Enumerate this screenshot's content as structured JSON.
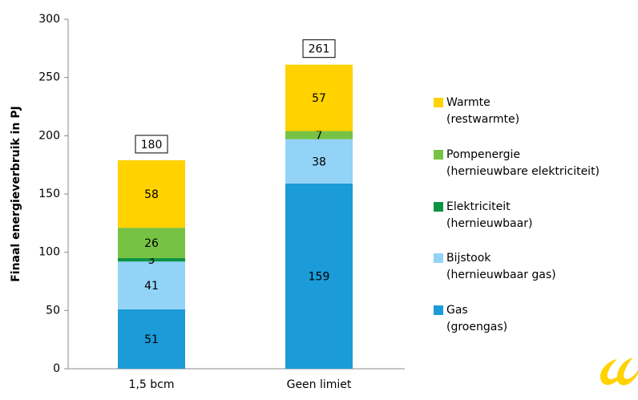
{
  "chart_data": {
    "type": "stacked_bar",
    "y_label": "Finaal energieverbruik in PJ",
    "categories": [
      "1,5 bcm",
      "Geen limiet"
    ],
    "series": [
      {
        "name": "Gas",
        "description": "(groengas)",
        "color": "#1b9bd7",
        "values": [
          51,
          159
        ]
      },
      {
        "name": "Bijstook",
        "description": "(hernieuwbaar gas)",
        "color": "#93d3f8",
        "values": [
          41,
          38
        ]
      },
      {
        "name": "Elektriciteit",
        "description": "(hernieuwbaar)",
        "color": "#0c9444",
        "values": [
          3,
          null
        ]
      },
      {
        "name": "Pompenergie",
        "description": "(hernieuwbare elektriciteit)",
        "color": "#77c244",
        "values": [
          26,
          7
        ]
      },
      {
        "name": "Warmte",
        "description": "(restwarmte)",
        "color": "#ffd200",
        "values": [
          58,
          57
        ]
      }
    ],
    "totals": [
      180,
      261
    ],
    "ylim": [
      0,
      300
    ],
    "yticks": [
      0,
      50,
      100,
      150,
      200,
      250,
      300
    ]
  }
}
